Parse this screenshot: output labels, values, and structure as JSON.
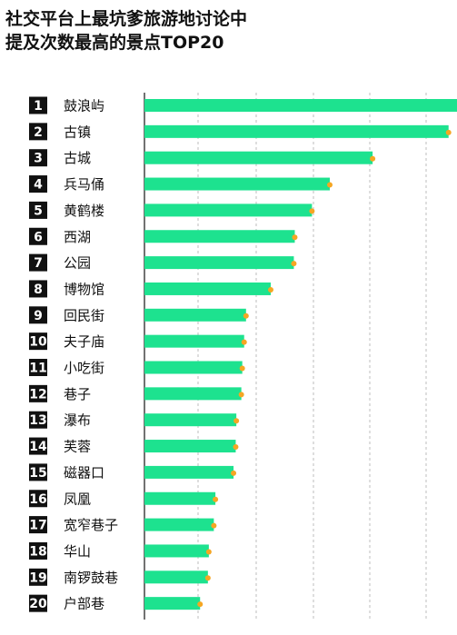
{
  "title_lines": [
    "社交平台上最坑爹旅游地讨论中",
    "提及次数最高的景点TOP20"
  ],
  "colors": {
    "bar": "#1de28f",
    "dot": "#f5a623",
    "rank_box": "#111111"
  },
  "chart_data": {
    "type": "bar",
    "orientation": "horizontal",
    "title": "社交平台上最坑爹旅游地讨论中提及次数最高的景点TOP20",
    "ranks": [
      "1",
      "2",
      "3",
      "4",
      "5",
      "6",
      "7",
      "8",
      "9",
      "10",
      "11",
      "12",
      "13",
      "14",
      "15",
      "16",
      "17",
      "18",
      "19",
      "20"
    ],
    "categories": [
      "鼓浪屿",
      "古镇",
      "古城",
      "兵马俑",
      "黄鹤楼",
      "西湖",
      "公园",
      "博物馆",
      "回民街",
      "夫子庙",
      "小吃街",
      "巷子",
      "瀑布",
      "芙蓉",
      "磁器口",
      "凤凰",
      "宽窄巷子",
      "华山",
      "南锣鼓巷",
      "户部巷"
    ],
    "values": [
      1.0,
      0.973,
      0.73,
      0.593,
      0.536,
      0.481,
      0.478,
      0.404,
      0.325,
      0.319,
      0.313,
      0.31,
      0.294,
      0.292,
      0.285,
      0.227,
      0.222,
      0.206,
      0.203,
      0.178
    ],
    "xlim": [
      0,
      1
    ],
    "xlabel": "",
    "ylabel": "",
    "grid": true,
    "legend": "none"
  }
}
